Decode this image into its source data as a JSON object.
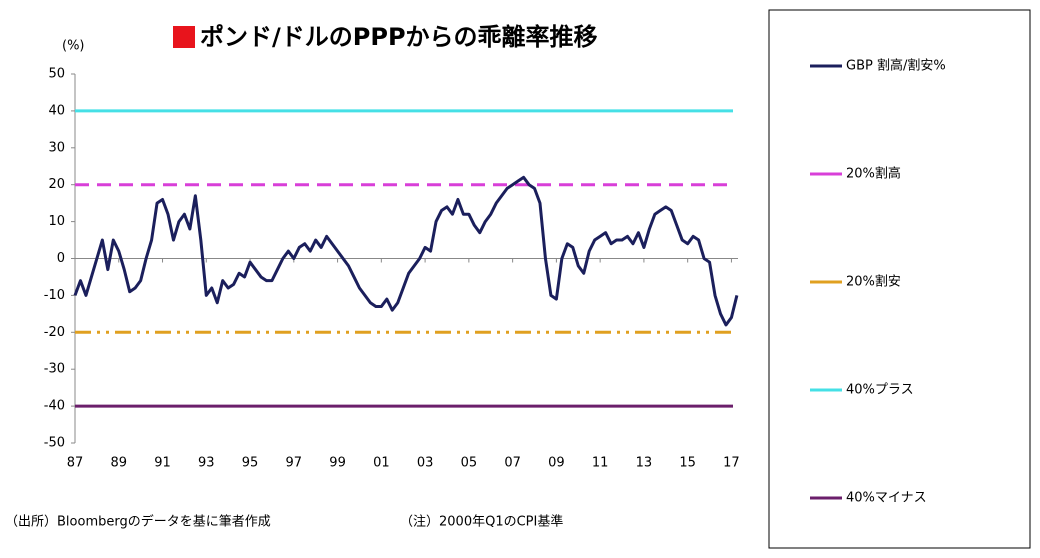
{
  "chart_data": {
    "type": "line",
    "title": "ポンド/ドルのPPPからの乖離率推移",
    "y_unit_label": "(%)",
    "source_note": "（出所）Bloombergのデータを基に筆者作成",
    "note": "（注）2000年Q1のCPI基準",
    "x": [
      1987,
      1987.25,
      1987.5,
      1987.75,
      1988,
      1988.25,
      1988.5,
      1988.75,
      1989,
      1989.25,
      1989.5,
      1989.75,
      1990,
      1990.25,
      1990.5,
      1990.75,
      1991,
      1991.25,
      1991.5,
      1991.75,
      1992,
      1992.25,
      1992.5,
      1992.75,
      1993,
      1993.25,
      1993.5,
      1993.75,
      1994,
      1994.25,
      1994.5,
      1994.75,
      1995,
      1995.25,
      1995.5,
      1995.75,
      1996,
      1996.25,
      1996.5,
      1996.75,
      1997,
      1997.25,
      1997.5,
      1997.75,
      1998,
      1998.25,
      1998.5,
      1998.75,
      1999,
      1999.25,
      1999.5,
      1999.75,
      2000,
      2000.25,
      2000.5,
      2000.75,
      2001,
      2001.25,
      2001.5,
      2001.75,
      2002,
      2002.25,
      2002.5,
      2002.75,
      2003,
      2003.25,
      2003.5,
      2003.75,
      2004,
      2004.25,
      2004.5,
      2004.75,
      2005,
      2005.25,
      2005.5,
      2005.75,
      2006,
      2006.25,
      2006.5,
      2006.75,
      2007,
      2007.25,
      2007.5,
      2007.75,
      2008,
      2008.25,
      2008.5,
      2008.75,
      2009,
      2009.25,
      2009.5,
      2009.75,
      2010,
      2010.25,
      2010.5,
      2010.75,
      2011,
      2011.25,
      2011.5,
      2011.75,
      2012,
      2012.25,
      2012.5,
      2012.75,
      2013,
      2013.25,
      2013.5,
      2013.75,
      2014,
      2014.25,
      2014.5,
      2014.75,
      2015,
      2015.25,
      2015.5,
      2015.75,
      2016,
      2016.25,
      2016.5,
      2016.75,
      2017,
      2017.25
    ],
    "series": [
      {
        "name": "GBP 割高/割安%",
        "color": "#1b1f5c",
        "values": [
          -10,
          -6,
          -10,
          -5,
          0,
          5,
          -3,
          5,
          2,
          -3,
          -9,
          -8,
          -6,
          0,
          5,
          15,
          16,
          12,
          5,
          10,
          12,
          8,
          17,
          5,
          -10,
          -8,
          -12,
          -6,
          -8,
          -7,
          -4,
          -5,
          -1,
          -3,
          -5,
          -6,
          -6,
          -3,
          0,
          2,
          0,
          3,
          4,
          2,
          5,
          3,
          6,
          4,
          2,
          0,
          -2,
          -5,
          -8,
          -10,
          -12,
          -13,
          -13,
          -11,
          -14,
          -12,
          -8,
          -4,
          -2,
          0,
          3,
          2,
          10,
          13,
          14,
          12,
          16,
          12,
          12,
          9,
          7,
          10,
          12,
          15,
          17,
          19,
          20,
          21,
          22,
          20,
          19,
          15,
          0,
          -10,
          -11,
          0,
          4,
          3,
          -2,
          -4,
          2,
          5,
          6,
          7,
          4,
          5,
          5,
          6,
          4,
          7,
          3,
          8,
          12,
          13,
          14,
          13,
          9,
          5,
          4,
          6,
          5,
          0,
          -1,
          -10,
          -15,
          -18,
          -16,
          -10
        ]
      }
    ],
    "reference_lines": [
      {
        "name": "20%割高",
        "value": 20,
        "color": "#d83fd8",
        "dash": "14 8"
      },
      {
        "name": "20%割安",
        "value": -20,
        "color": "#e0a020",
        "dash": "16 6 3 6 3 6"
      },
      {
        "name": "40%プラス",
        "value": 40,
        "color": "#45e0e6",
        "dash": "none"
      },
      {
        "name": "40%マイナス",
        "value": -40,
        "color": "#6b1f6b",
        "dash": "none"
      }
    ],
    "xlim": [
      1987,
      2017.3
    ],
    "xticks": [
      {
        "value": 1987,
        "label": "87"
      },
      {
        "value": 1989,
        "label": "89"
      },
      {
        "value": 1991,
        "label": "91"
      },
      {
        "value": 1993,
        "label": "93"
      },
      {
        "value": 1995,
        "label": "95"
      },
      {
        "value": 1997,
        "label": "97"
      },
      {
        "value": 1999,
        "label": "99"
      },
      {
        "value": 2001,
        "label": "01"
      },
      {
        "value": 2003,
        "label": "03"
      },
      {
        "value": 2005,
        "label": "05"
      },
      {
        "value": 2007,
        "label": "07"
      },
      {
        "value": 2009,
        "label": "09"
      },
      {
        "value": 2011,
        "label": "11"
      },
      {
        "value": 2013,
        "label": "13"
      },
      {
        "value": 2015,
        "label": "15"
      },
      {
        "value": 2017,
        "label": "17"
      }
    ],
    "ylim": [
      -50,
      50
    ],
    "yticks": [
      -50,
      -40,
      -30,
      -20,
      -10,
      0,
      10,
      20,
      30,
      40,
      50
    ]
  }
}
